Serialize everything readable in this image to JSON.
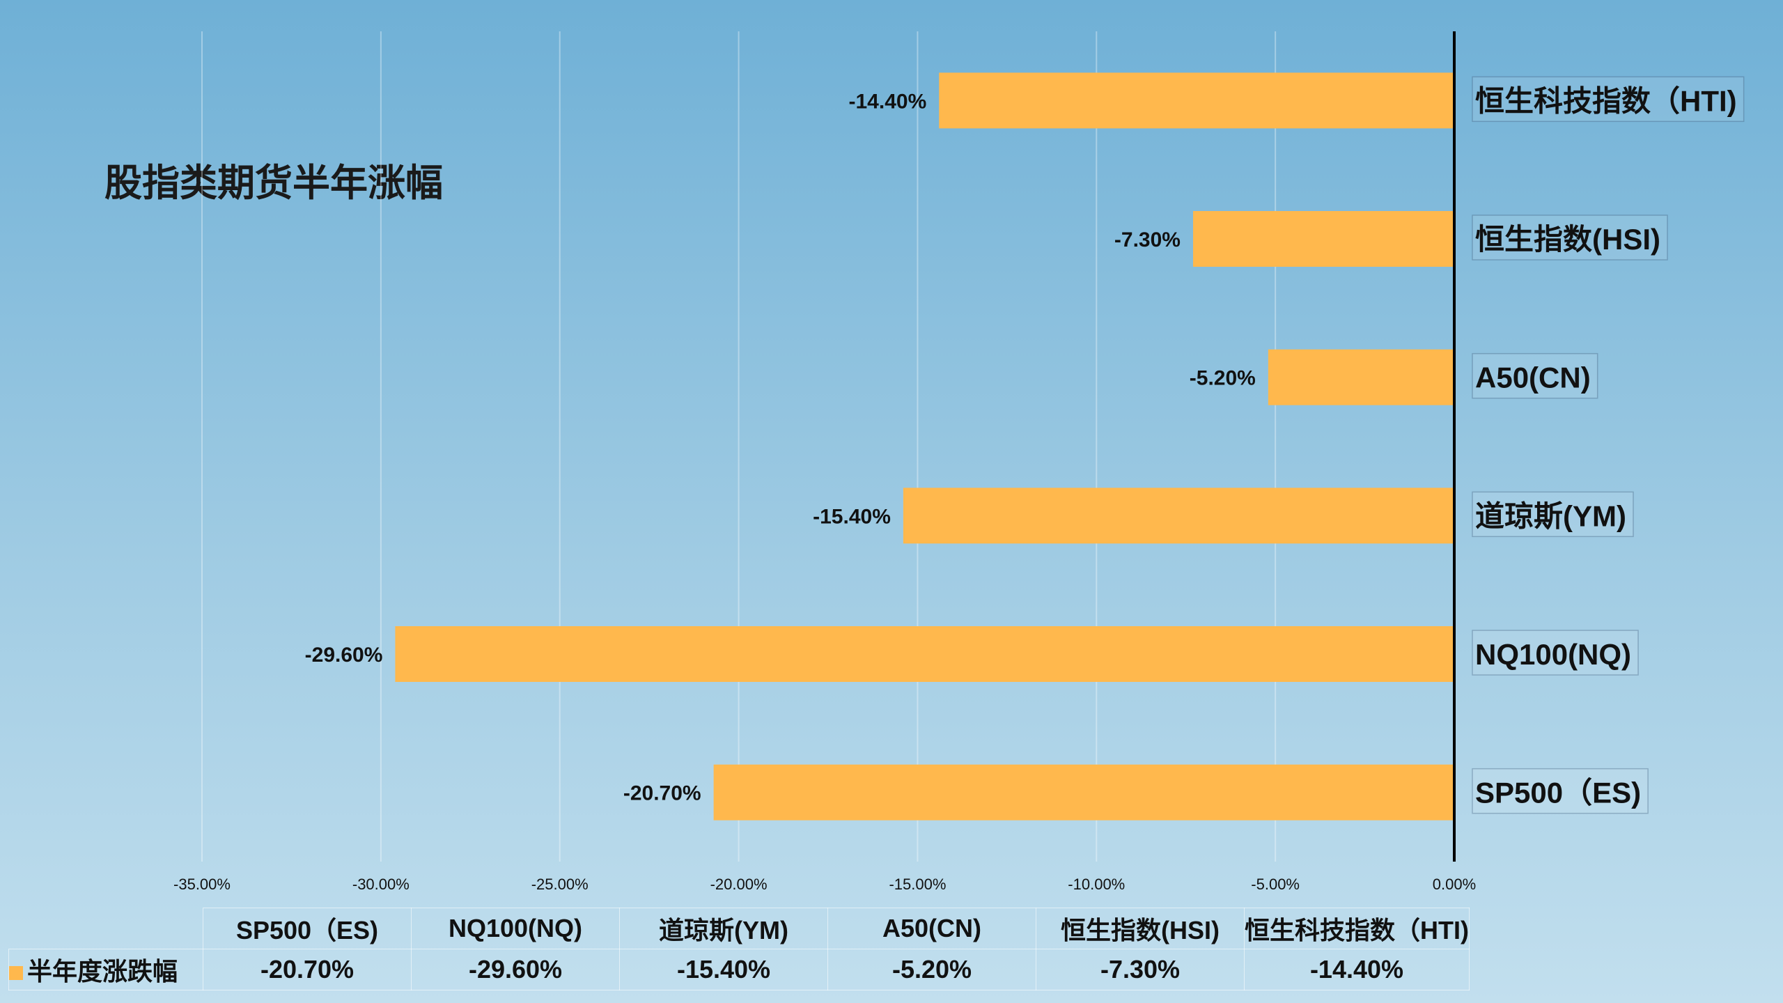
{
  "chart_data": {
    "type": "bar",
    "orientation": "horizontal",
    "title": "股指类期货半年涨幅",
    "categories": [
      "SP500（ES)",
      "NQ100(NQ)",
      "道琼斯(YM)",
      "A50(CN)",
      "恒生指数(HSI)",
      "恒生科技指数（HTI)"
    ],
    "series": [
      {
        "name": "半年度涨跌幅",
        "values": [
          -20.7,
          -29.6,
          -15.4,
          -5.2,
          -7.3,
          -14.4
        ],
        "color": "#ffb84d"
      }
    ],
    "data_labels": [
      "-20.70%",
      "-29.60%",
      "-15.40%",
      "-5.20%",
      "-7.30%",
      "-14.40%"
    ],
    "xlim": [
      -35,
      0
    ],
    "x_ticks": [
      -35,
      -30,
      -25,
      -20,
      -15,
      -10,
      -5,
      0
    ],
    "x_tick_labels": [
      "-35.00%",
      "-30.00%",
      "-25.00%",
      "-20.00%",
      "-15.00%",
      "-10.00%",
      "-5.00%",
      "0.00%"
    ],
    "grid": true,
    "legend_placement": "data-table-bottom"
  }
}
